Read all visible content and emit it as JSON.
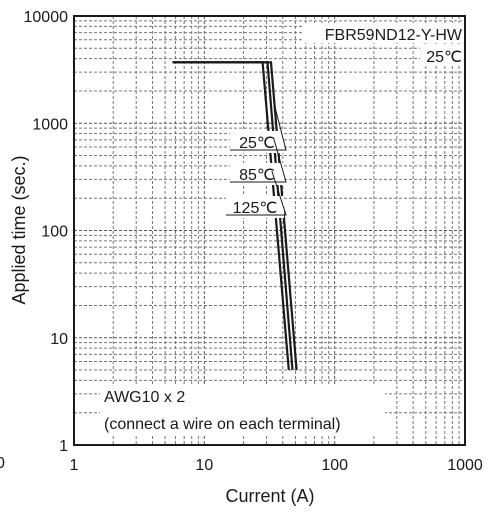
{
  "chart_data": {
    "type": "line",
    "title": "FBR59ND12-Y-HW",
    "subtitle": "25℃",
    "xlabel": "Current (A)",
    "ylabel": "Applied time (sec.)",
    "x_scale": "log",
    "y_scale": "log",
    "xlim": [
      1,
      1000
    ],
    "ylim": [
      1,
      10000
    ],
    "x_ticks": [
      "1",
      "10",
      "100",
      "1000"
    ],
    "y_ticks": [
      "1",
      "10",
      "100",
      "1000",
      "10000"
    ],
    "grid": true,
    "series": [
      {
        "name": "25℃",
        "x": [
          5.7,
          32.5,
          51.0
        ],
        "y": [
          3700,
          3700,
          5
        ]
      },
      {
        "name": "85℃",
        "x": [
          5.7,
          30.5,
          47.5
        ],
        "y": [
          3700,
          3700,
          5
        ]
      },
      {
        "name": "125℃",
        "x": [
          5.7,
          28.0,
          44.5
        ],
        "y": [
          3700,
          3700,
          5
        ]
      }
    ],
    "annotations": [
      "AWG10 x 2",
      "(connect a wire on each terminal)"
    ],
    "stray_label": "0"
  }
}
